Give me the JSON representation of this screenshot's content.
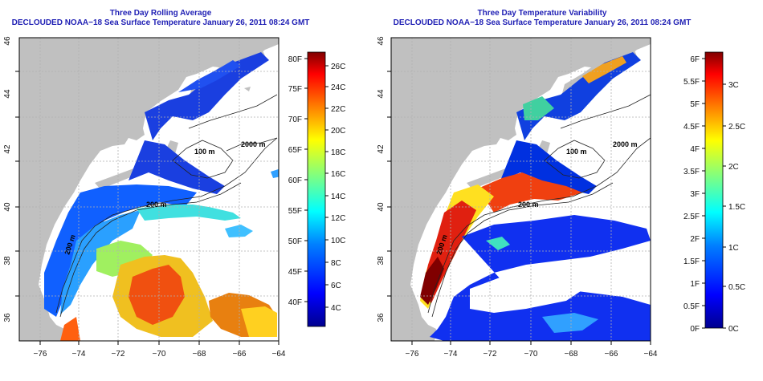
{
  "panels": [
    {
      "title": "Three Day Rolling Average",
      "subtitle": "DECLOUDED NOAA−18 Sea Surface Temperature January 26, 2011 08:24 GMT",
      "x_ticks": [
        "−76",
        "−74",
        "−72",
        "−70",
        "−68",
        "−66",
        "−64"
      ],
      "y_ticks": [
        "36",
        "38",
        "40",
        "42",
        "44",
        "46"
      ],
      "contours": [
        "200 m",
        "100 m",
        "2000 m",
        "200 m"
      ],
      "colorbar": {
        "f_labels": [
          "40F",
          "45F",
          "50F",
          "55F",
          "60F",
          "65F",
          "70F",
          "75F",
          "80F"
        ],
        "c_labels": [
          "4C",
          "6C",
          "8C",
          "10C",
          "12C",
          "14C",
          "16C",
          "18C",
          "20C",
          "22C",
          "24C",
          "26C"
        ]
      }
    },
    {
      "title": "Three Day Temperature Variability",
      "subtitle": "DECLOUDED NOAA−18 Sea Surface Temperature January 26, 2011 08:24 GMT",
      "x_ticks": [
        "−76",
        "−74",
        "−72",
        "−70",
        "−68",
        "−66",
        "−64"
      ],
      "y_ticks": [
        "36",
        "38",
        "40",
        "42",
        "44",
        "46"
      ],
      "contours": [
        "200 m",
        "100 m",
        "2000 m",
        "200 m"
      ],
      "colorbar": {
        "f_labels": [
          "0F",
          "0.5F",
          "1F",
          "1.5F",
          "2F",
          "2.5F",
          "3F",
          "3.5F",
          "4F",
          "4.5F",
          "5F",
          "5.5F",
          "6F"
        ],
        "c_labels": [
          "0C",
          "0.5C",
          "1C",
          "1.5C",
          "2C",
          "2.5C",
          "3C"
        ]
      }
    }
  ],
  "colors": {
    "title": "#1f1fb4",
    "land": "#c0c0c0",
    "ocean_nodata": "#ffffff",
    "grid": "#b0b0b0",
    "colormap": [
      "#00008f",
      "#0000ff",
      "#0080ff",
      "#00ffff",
      "#80ff80",
      "#ffff00",
      "#ff8000",
      "#ff0000",
      "#800000"
    ]
  }
}
